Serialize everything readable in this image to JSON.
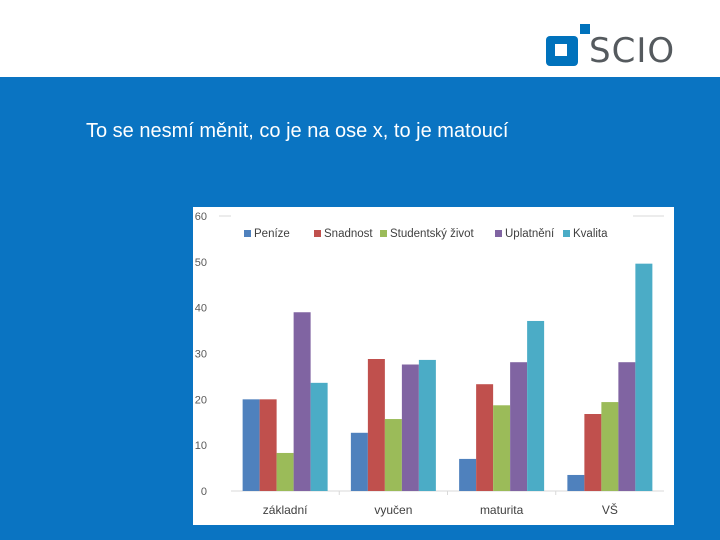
{
  "brand": {
    "name": "SCIO",
    "logo_text": "SCIO",
    "logo_color": "#0072bc",
    "text_color": "#555a5e"
  },
  "colors": {
    "header_bg": "#ffffff",
    "band_bg": "#0a74c2"
  },
  "slide": {
    "text": "To se nesmí měnit, co je na ose x, to je matoucí"
  },
  "chart_data": {
    "type": "bar",
    "categories": [
      "základní",
      "vyučen",
      "maturita",
      "VŠ"
    ],
    "y_ticks": [
      "0",
      "10",
      "20",
      "30",
      "40",
      "50",
      "60"
    ],
    "ylim": [
      0,
      60
    ],
    "grid": false,
    "legend_position": "top",
    "series": [
      {
        "name": "Peníze",
        "color": "#4f81bd",
        "values": [
          20,
          12.7,
          7,
          3.5
        ]
      },
      {
        "name": "Snadnost",
        "color": "#c0504d",
        "values": [
          20,
          28.8,
          23.3,
          16.8
        ]
      },
      {
        "name": "Studentský život",
        "color": "#9bbb59",
        "values": [
          8.3,
          15.7,
          18.7,
          19.4
        ]
      },
      {
        "name": "Uplatnění",
        "color": "#8064a2",
        "values": [
          39,
          27.6,
          28.1,
          28.1
        ]
      },
      {
        "name": "Kvalita",
        "color": "#4bacc6",
        "values": [
          23.6,
          28.6,
          37.1,
          49.6
        ]
      }
    ]
  }
}
